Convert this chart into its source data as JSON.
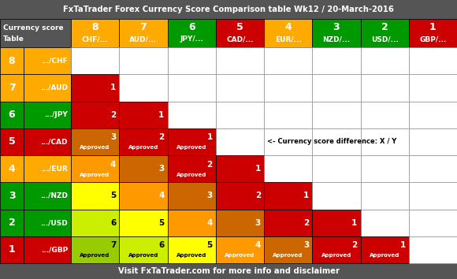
{
  "title": "FxTaTrader Forex Currency Score Comparison table Wk12 / 20-March-2016",
  "footer": "Visit FxTaTrader.com for more info and disclaimer",
  "col_headers": [
    {
      "score": 8,
      "label": "CHF/..."
    },
    {
      "score": 7,
      "label": "AUD/..."
    },
    {
      "score": 6,
      "label": "JPY/..."
    },
    {
      "score": 5,
      "label": "CAD/..."
    },
    {
      "score": 4,
      "label": "EUR/..."
    },
    {
      "score": 3,
      "label": "NZD/..."
    },
    {
      "score": 2,
      "label": "USD/..."
    },
    {
      "score": 1,
      "label": "GBP/..."
    }
  ],
  "row_headers": [
    {
      "score": 8,
      "label": ".../CHF"
    },
    {
      "score": 7,
      "label": ".../AUD"
    },
    {
      "score": 6,
      "label": ".../JPY"
    },
    {
      "score": 5,
      "label": ".../CAD"
    },
    {
      "score": 4,
      "label": ".../EUR"
    },
    {
      "score": 3,
      "label": ".../NZD"
    },
    {
      "score": 2,
      "label": ".../USD"
    },
    {
      "score": 1,
      "label": ".../GBP"
    }
  ],
  "row_score_colors": {
    "8": "#FFAA00",
    "7": "#FFAA00",
    "6": "#009900",
    "5": "#CC0000",
    "4": "#FFAA00",
    "3": "#009900",
    "2": "#009900",
    "1": "#CC0000"
  },
  "col_score_colors": {
    "8": "#FFAA00",
    "7": "#FFAA00",
    "6": "#009900",
    "5": "#CC0000",
    "4": "#FFAA00",
    "3": "#009900",
    "2": "#009900",
    "1": "#CC0000"
  },
  "cell_data": [
    [
      null,
      null,
      null,
      null,
      null,
      null,
      null,
      null
    ],
    [
      {
        "val": 1,
        "approved": false
      },
      null,
      null,
      null,
      null,
      null,
      null,
      null
    ],
    [
      {
        "val": 2,
        "approved": false
      },
      {
        "val": 1,
        "approved": false
      },
      null,
      null,
      null,
      null,
      null,
      null
    ],
    [
      {
        "val": 3,
        "approved": true
      },
      {
        "val": 2,
        "approved": true
      },
      {
        "val": 1,
        "approved": true
      },
      null,
      null,
      null,
      null,
      null
    ],
    [
      {
        "val": 4,
        "approved": true
      },
      {
        "val": 3,
        "approved": false
      },
      {
        "val": 2,
        "approved": true
      },
      {
        "val": 1,
        "approved": false
      },
      null,
      null,
      null,
      null
    ],
    [
      {
        "val": 5,
        "approved": false
      },
      {
        "val": 4,
        "approved": false
      },
      {
        "val": 3,
        "approved": false
      },
      {
        "val": 2,
        "approved": false
      },
      {
        "val": 1,
        "approved": false
      },
      null,
      null,
      null
    ],
    [
      {
        "val": 6,
        "approved": false
      },
      {
        "val": 5,
        "approved": false
      },
      {
        "val": 4,
        "approved": false
      },
      {
        "val": 3,
        "approved": false
      },
      {
        "val": 2,
        "approved": false
      },
      {
        "val": 1,
        "approved": false
      },
      null,
      null
    ],
    [
      {
        "val": 7,
        "approved": true
      },
      {
        "val": 6,
        "approved": true
      },
      {
        "val": 5,
        "approved": true
      },
      {
        "val": 4,
        "approved": true
      },
      {
        "val": 3,
        "approved": true
      },
      {
        "val": 2,
        "approved": true
      },
      {
        "val": 1,
        "approved": true
      },
      null
    ]
  ],
  "cell_colors": {
    "1": "#CC0000",
    "2": "#CC0000",
    "3": "#CC6600",
    "4": "#FF9900",
    "5": "#FFFF00",
    "6": "#CCEE00",
    "7": "#99CC00"
  },
  "annotation_row": 3,
  "annotation_col": 4,
  "annotation_text": "<- Currency score difference: X / Y",
  "bg_color": "#555555",
  "white": "#FFFFFF",
  "black": "#000000",
  "grid_color": "#888888"
}
